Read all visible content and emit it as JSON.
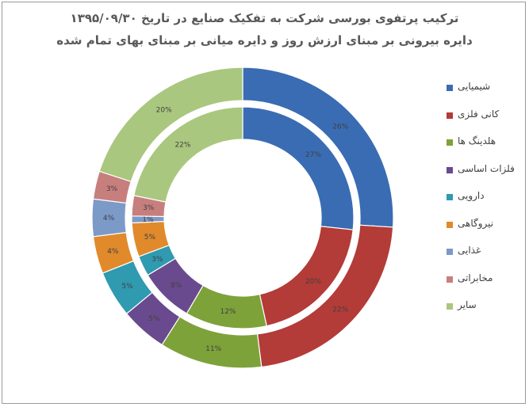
{
  "chart_data": {
    "type": "doughnut",
    "title": "ترکیب پرتفوی بورسی شرکت به تفکیک صنایع در تاریخ ۱۳۹۵/۰۹/۳۰",
    "subtitle": "دایره بیرونی بر مبنای ارزش روز و دایره میانی بر مبنای بهای تمام شده",
    "legend_position": "right",
    "categories": [
      "شیمیایی",
      "کانی فلزی",
      "هلدینگ ها",
      "فلزات اساسی",
      "دارویی",
      "نیروگاهی",
      "غذایی",
      "مخابراتی",
      "سایر"
    ],
    "colors": [
      "#3a6cb3",
      "#b33b38",
      "#7ea23a",
      "#6a4a8e",
      "#2f9ab0",
      "#e08a2c",
      "#7b9ac8",
      "#c77f7e",
      "#a9c77e"
    ],
    "series": [
      {
        "ring": "outer",
        "values": [
          26,
          22,
          11,
          5,
          5,
          4,
          4,
          3,
          20
        ],
        "labels": [
          "26%",
          "22%",
          "11%",
          "5%",
          "5%",
          "4%",
          "4%",
          "3%",
          "20%"
        ]
      },
      {
        "ring": "inner",
        "values": [
          27,
          20,
          12,
          8,
          3,
          5,
          1,
          3,
          22
        ],
        "labels": [
          "27%",
          "20%",
          "12%",
          "8%",
          "3%",
          "5%",
          "1%",
          "3%",
          "22%"
        ]
      }
    ]
  }
}
